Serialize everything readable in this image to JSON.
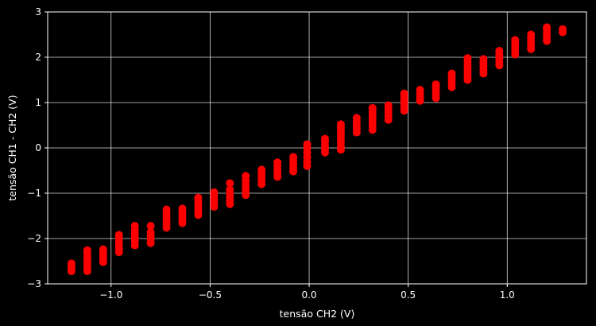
{
  "chart_data": {
    "type": "scatter",
    "title": "",
    "xlabel": "tensão CH2 (V)",
    "ylabel": "tensão CH1 - CH2 (V)",
    "xlim": [
      -1.32,
      1.4
    ],
    "ylim": [
      -3,
      3
    ],
    "x_ticks": [
      -1.0,
      -0.5,
      0.0,
      0.5,
      1.0
    ],
    "x_tick_labels": [
      "−1.0",
      "−0.5",
      "0.0",
      "0.5",
      "1.0"
    ],
    "y_ticks": [
      -3,
      -2,
      -1,
      0,
      1,
      2,
      3
    ],
    "y_tick_labels": [
      "−3",
      "−2",
      "−1",
      "0",
      "1",
      "2",
      "3"
    ],
    "grid": true,
    "background": "#000000",
    "foreground": "#ffffff",
    "marker_color": "#ff0000",
    "series": [
      {
        "marker": "circle",
        "points": [
          [
            -1.2,
            -2.72
          ],
          [
            -1.2,
            -2.66
          ],
          [
            -1.2,
            -2.6
          ],
          [
            -1.2,
            -2.55
          ],
          [
            -1.12,
            -2.72
          ],
          [
            -1.12,
            -2.64
          ],
          [
            -1.12,
            -2.56
          ],
          [
            -1.12,
            -2.48
          ],
          [
            -1.12,
            -2.4
          ],
          [
            -1.12,
            -2.32
          ],
          [
            -1.12,
            -2.26
          ],
          [
            -1.04,
            -2.52
          ],
          [
            -1.04,
            -2.45
          ],
          [
            -1.04,
            -2.38
          ],
          [
            -1.04,
            -2.3
          ],
          [
            -1.04,
            -2.24
          ],
          [
            -0.96,
            -2.3
          ],
          [
            -0.96,
            -2.22
          ],
          [
            -0.96,
            -2.14
          ],
          [
            -0.96,
            -2.06
          ],
          [
            -0.96,
            -1.98
          ],
          [
            -0.96,
            -1.92
          ],
          [
            -0.88,
            -2.15
          ],
          [
            -0.88,
            -2.06
          ],
          [
            -0.88,
            -1.98
          ],
          [
            -0.88,
            -1.9
          ],
          [
            -0.88,
            -1.82
          ],
          [
            -0.88,
            -1.72
          ],
          [
            -0.8,
            -2.1
          ],
          [
            -0.8,
            -2.02
          ],
          [
            -0.8,
            -1.94
          ],
          [
            -0.8,
            -1.86
          ],
          [
            -0.8,
            -1.72
          ],
          [
            -0.72,
            -1.76
          ],
          [
            -0.72,
            -1.68
          ],
          [
            -0.72,
            -1.6
          ],
          [
            -0.72,
            -1.52
          ],
          [
            -0.72,
            -1.44
          ],
          [
            -0.72,
            -1.36
          ],
          [
            -0.64,
            -1.66
          ],
          [
            -0.64,
            -1.58
          ],
          [
            -0.64,
            -1.5
          ],
          [
            -0.64,
            -1.42
          ],
          [
            -0.64,
            -1.34
          ],
          [
            -0.56,
            -1.48
          ],
          [
            -0.56,
            -1.4
          ],
          [
            -0.56,
            -1.32
          ],
          [
            -0.56,
            -1.24
          ],
          [
            -0.56,
            -1.16
          ],
          [
            -0.56,
            -1.1
          ],
          [
            -0.48,
            -1.3
          ],
          [
            -0.48,
            -1.22
          ],
          [
            -0.48,
            -1.14
          ],
          [
            -0.48,
            -1.06
          ],
          [
            -0.48,
            -0.98
          ],
          [
            -0.4,
            -1.24
          ],
          [
            -0.4,
            -1.16
          ],
          [
            -0.4,
            -1.08
          ],
          [
            -0.4,
            -1.0
          ],
          [
            -0.4,
            -0.92
          ],
          [
            -0.4,
            -0.78
          ],
          [
            -0.32,
            -1.04
          ],
          [
            -0.32,
            -0.96
          ],
          [
            -0.32,
            -0.88
          ],
          [
            -0.32,
            -0.8
          ],
          [
            -0.32,
            -0.72
          ],
          [
            -0.32,
            -0.62
          ],
          [
            -0.24,
            -0.8
          ],
          [
            -0.24,
            -0.72
          ],
          [
            -0.24,
            -0.64
          ],
          [
            -0.24,
            -0.56
          ],
          [
            -0.24,
            -0.48
          ],
          [
            -0.16,
            -0.64
          ],
          [
            -0.16,
            -0.56
          ],
          [
            -0.16,
            -0.48
          ],
          [
            -0.16,
            -0.4
          ],
          [
            -0.16,
            -0.32
          ],
          [
            -0.08,
            -0.52
          ],
          [
            -0.08,
            -0.44
          ],
          [
            -0.08,
            -0.36
          ],
          [
            -0.08,
            -0.28
          ],
          [
            -0.08,
            -0.2
          ],
          [
            -0.01,
            -0.4
          ],
          [
            -0.01,
            -0.3
          ],
          [
            -0.01,
            -0.2
          ],
          [
            -0.01,
            -0.1
          ],
          [
            -0.01,
            0.0
          ],
          [
            -0.01,
            0.08
          ],
          [
            0.08,
            -0.1
          ],
          [
            0.08,
            -0.02
          ],
          [
            0.08,
            0.06
          ],
          [
            0.08,
            0.14
          ],
          [
            0.08,
            0.2
          ],
          [
            0.16,
            -0.04
          ],
          [
            0.16,
            0.04
          ],
          [
            0.16,
            0.12
          ],
          [
            0.16,
            0.2
          ],
          [
            0.16,
            0.28
          ],
          [
            0.16,
            0.36
          ],
          [
            0.16,
            0.44
          ],
          [
            0.16,
            0.52
          ],
          [
            0.24,
            0.34
          ],
          [
            0.24,
            0.42
          ],
          [
            0.24,
            0.5
          ],
          [
            0.24,
            0.58
          ],
          [
            0.24,
            0.66
          ],
          [
            0.32,
            0.4
          ],
          [
            0.32,
            0.48
          ],
          [
            0.32,
            0.56
          ],
          [
            0.32,
            0.64
          ],
          [
            0.32,
            0.72
          ],
          [
            0.32,
            0.8
          ],
          [
            0.32,
            0.88
          ],
          [
            0.4,
            0.62
          ],
          [
            0.4,
            0.7
          ],
          [
            0.4,
            0.78
          ],
          [
            0.4,
            0.86
          ],
          [
            0.4,
            0.94
          ],
          [
            0.48,
            0.82
          ],
          [
            0.48,
            0.9
          ],
          [
            0.48,
            0.98
          ],
          [
            0.48,
            1.06
          ],
          [
            0.48,
            1.14
          ],
          [
            0.48,
            1.2
          ],
          [
            0.56,
            1.04
          ],
          [
            0.56,
            1.12
          ],
          [
            0.56,
            1.2
          ],
          [
            0.56,
            1.28
          ],
          [
            0.64,
            1.1
          ],
          [
            0.64,
            1.18
          ],
          [
            0.64,
            1.26
          ],
          [
            0.64,
            1.34
          ],
          [
            0.64,
            1.4
          ],
          [
            0.72,
            1.34
          ],
          [
            0.72,
            1.42
          ],
          [
            0.72,
            1.5
          ],
          [
            0.72,
            1.58
          ],
          [
            0.72,
            1.64
          ],
          [
            0.8,
            1.5
          ],
          [
            0.8,
            1.58
          ],
          [
            0.8,
            1.66
          ],
          [
            0.8,
            1.74
          ],
          [
            0.8,
            1.82
          ],
          [
            0.8,
            1.9
          ],
          [
            0.8,
            1.98
          ],
          [
            0.88,
            1.64
          ],
          [
            0.88,
            1.72
          ],
          [
            0.88,
            1.8
          ],
          [
            0.88,
            1.88
          ],
          [
            0.88,
            1.96
          ],
          [
            0.96,
            1.82
          ],
          [
            0.96,
            1.9
          ],
          [
            0.96,
            1.98
          ],
          [
            0.96,
            2.06
          ],
          [
            0.96,
            2.14
          ],
          [
            1.04,
            2.06
          ],
          [
            1.04,
            2.14
          ],
          [
            1.04,
            2.22
          ],
          [
            1.04,
            2.3
          ],
          [
            1.04,
            2.38
          ],
          [
            1.12,
            2.18
          ],
          [
            1.12,
            2.26
          ],
          [
            1.12,
            2.34
          ],
          [
            1.12,
            2.42
          ],
          [
            1.12,
            2.5
          ],
          [
            1.2,
            2.36
          ],
          [
            1.2,
            2.44
          ],
          [
            1.2,
            2.52
          ],
          [
            1.2,
            2.6
          ],
          [
            1.2,
            2.66
          ],
          [
            1.28,
            2.55
          ],
          [
            1.28,
            2.62
          ]
        ]
      }
    ]
  }
}
